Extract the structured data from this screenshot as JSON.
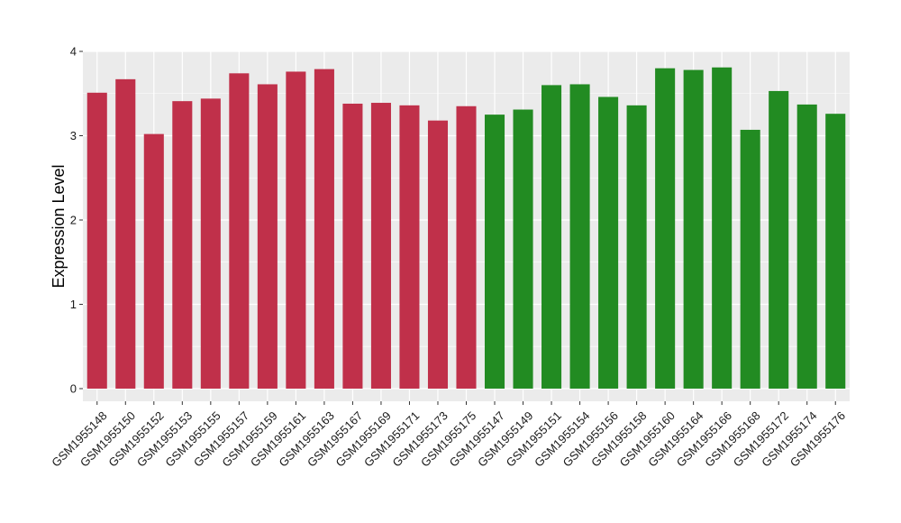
{
  "chart_data": {
    "type": "bar",
    "title": "",
    "xlabel": "",
    "ylabel": "Expression Level",
    "ylim": [
      -0.15,
      4.0
    ],
    "yticks": [
      0,
      1,
      2,
      3,
      4
    ],
    "grid": true,
    "legend": "none",
    "categories": [
      "GSM1955148",
      "GSM1955150",
      "GSM1955152",
      "GSM1955153",
      "GSM1955155",
      "GSM1955157",
      "GSM1955159",
      "GSM1955161",
      "GSM1955163",
      "GSM1955167",
      "GSM1955169",
      "GSM1955171",
      "GSM1955173",
      "GSM1955175",
      "GSM1955147",
      "GSM1955149",
      "GSM1955151",
      "GSM1955154",
      "GSM1955156",
      "GSM1955158",
      "GSM1955160",
      "GSM1955164",
      "GSM1955166",
      "GSM1955168",
      "GSM1955172",
      "GSM1955174",
      "GSM1955176"
    ],
    "values": [
      3.51,
      3.67,
      3.02,
      3.41,
      3.44,
      3.74,
      3.61,
      3.76,
      3.79,
      3.38,
      3.39,
      3.36,
      3.18,
      3.35,
      3.25,
      3.31,
      3.6,
      3.61,
      3.46,
      3.36,
      3.8,
      3.78,
      3.81,
      3.07,
      3.53,
      3.37,
      3.26
    ],
    "groups": [
      0,
      0,
      0,
      0,
      0,
      0,
      0,
      0,
      0,
      0,
      0,
      0,
      0,
      0,
      1,
      1,
      1,
      1,
      1,
      1,
      1,
      1,
      1,
      1,
      1,
      1,
      1
    ],
    "group_colors": [
      "#c0304a",
      "#228b22"
    ],
    "panel_background": "#ebebeb",
    "gridline_color": "#ffffff"
  }
}
